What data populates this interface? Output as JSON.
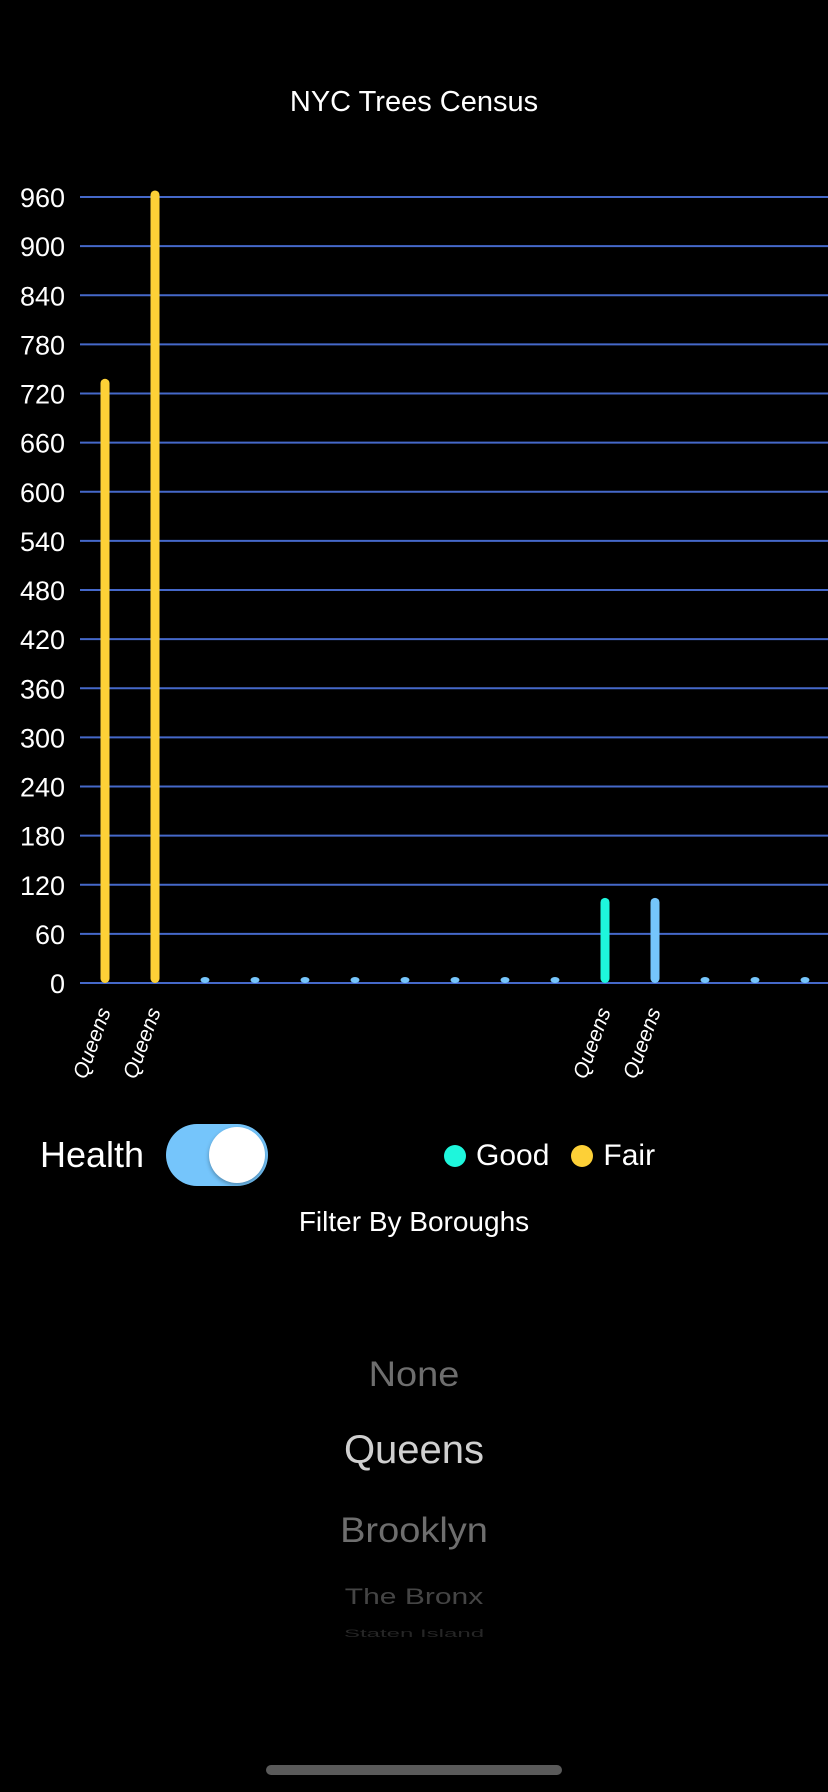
{
  "app": {
    "title": "NYC Trees Census"
  },
  "chart_data": {
    "type": "bar",
    "categories": [
      "Queens",
      "Queens",
      "",
      "",
      "",
      "",
      "",
      "",
      "",
      "",
      "Queens",
      "Queens",
      "",
      "",
      ""
    ],
    "values": [
      738,
      968,
      5,
      5,
      5,
      5,
      5,
      5,
      5,
      5,
      104,
      104,
      5,
      5,
      5
    ],
    "bar_colors": [
      "#fdd037",
      "#fdd037",
      "#75c5fb",
      "#75c5fb",
      "#75c5fb",
      "#75c5fb",
      "#75c5fb",
      "#75c5fb",
      "#75c5fb",
      "#75c5fb",
      "#1ef6dc",
      "#75c5fb",
      "#75c5fb",
      "#75c5fb",
      "#75c5fb"
    ],
    "y_ticks": [
      "0",
      "60",
      "120",
      "180",
      "240",
      "300",
      "360",
      "420",
      "480",
      "540",
      "600",
      "660",
      "720",
      "780",
      "840",
      "900",
      "960"
    ],
    "ylim": [
      0,
      960
    ],
    "grid": true,
    "grid_color": "#4568c9",
    "title": "NYC Trees Census",
    "xlabel": "",
    "ylabel": ""
  },
  "controls": {
    "health_label": "Health",
    "health_toggle_on": true,
    "toggle_color": "#75c5fb",
    "legend": [
      {
        "label": "Good",
        "color": "#1ef6dc"
      },
      {
        "label": "Fair",
        "color": "#fdd037"
      }
    ]
  },
  "filter": {
    "title": "Filter By Boroughs",
    "options": [
      "None",
      "Queens",
      "Brooklyn",
      "The Bronx",
      "Staten Island"
    ],
    "selected": "Queens"
  }
}
